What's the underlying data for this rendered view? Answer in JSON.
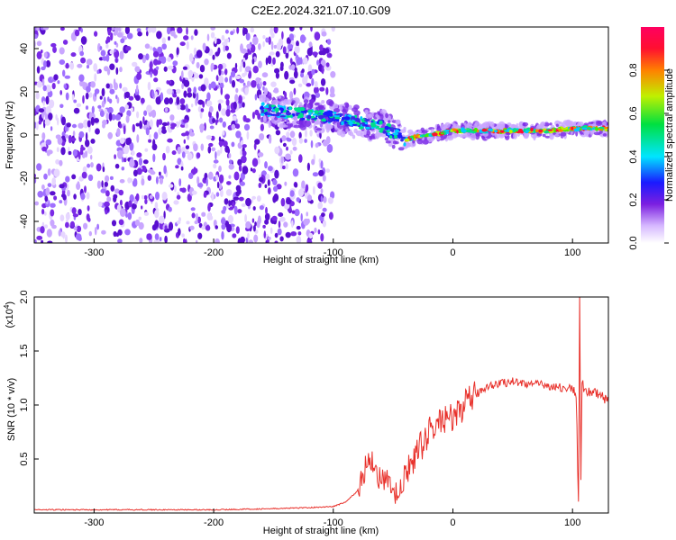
{
  "page_title": "C2E2.2024.321.07.10.G09",
  "colorbar": {
    "label": "Normalized spectral amplitude",
    "ticks": [
      "0.0",
      "0.2",
      "0.4",
      "0.6",
      "0.8"
    ],
    "range": [
      0,
      1
    ],
    "colors": [
      "#ffffff",
      "#d6b8ff",
      "#7b1fe0",
      "#1a1aff",
      "#00e5ff",
      "#00e040",
      "#c0f000",
      "#ff8000",
      "#ff1030",
      "#ff0060"
    ]
  },
  "chart_data": [
    {
      "type": "heatmap",
      "title": "C2E2.2024.321.07.10.G09",
      "xlabel": "Height of straight line (km)",
      "ylabel": "Frequency (Hz)",
      "xlim": [
        -350,
        130
      ],
      "ylim": [
        -50,
        50
      ],
      "xticks": [
        -300,
        -200,
        -100,
        0,
        100
      ],
      "yticks": [
        -40,
        -20,
        0,
        20,
        40
      ],
      "description_regions": [
        {
          "x": [
            -350,
            -100
          ],
          "y": [
            -50,
            50
          ],
          "level": "noise",
          "amplitude": 0.15
        },
        {
          "x": [
            -160,
            -40
          ],
          "y": [
            -5,
            15
          ],
          "level": "signal",
          "amplitude": 0.5
        },
        {
          "x": [
            -40,
            130
          ],
          "y": [
            0,
            4
          ],
          "level": "carrier",
          "amplitude": 1.0
        }
      ],
      "ridge": {
        "x": [
          -160,
          -130,
          -100,
          -80,
          -60,
          -40,
          -30,
          -20,
          -10,
          0,
          20,
          40,
          60,
          80,
          100,
          110,
          120,
          130
        ],
        "y": [
          12,
          10,
          8,
          6,
          4,
          -2,
          -1,
          0,
          1,
          2,
          2,
          2,
          2,
          2,
          3,
          3,
          3,
          3
        ]
      }
    },
    {
      "type": "line",
      "xlabel": "Height of straight line (km)",
      "ylabel": "SNR (10 * v/v)",
      "exponent_label": "(x10",
      "exponent_power": "4",
      "exponent_close": ")",
      "color": "#e8302a",
      "xlim": [
        -350,
        130
      ],
      "ylim": [
        0,
        2.0
      ],
      "xticks": [
        -300,
        -200,
        -100,
        0,
        100
      ],
      "yticks": [
        "0.5",
        "1.0",
        "1.5",
        "2.0"
      ],
      "series": [
        {
          "x": [
            -350,
            -300,
            -250,
            -200,
            -150,
            -120,
            -100,
            -90,
            -80,
            -75,
            -70,
            -65,
            -60,
            -55,
            -50,
            -45,
            -40,
            -35,
            -30,
            -25,
            -20,
            -15,
            -10,
            -5,
            0,
            5,
            10,
            15,
            20,
            25,
            30,
            40,
            50,
            60,
            70,
            80,
            90,
            100,
            103,
            105,
            106,
            107,
            108,
            110,
            115,
            120,
            125,
            130
          ],
          "y": [
            0.03,
            0.03,
            0.03,
            0.03,
            0.04,
            0.05,
            0.06,
            0.1,
            0.2,
            0.35,
            0.55,
            0.4,
            0.3,
            0.28,
            0.2,
            0.15,
            0.35,
            0.45,
            0.55,
            0.65,
            0.75,
            0.8,
            0.85,
            0.9,
            0.85,
            0.95,
            1.0,
            1.05,
            1.1,
            1.15,
            1.18,
            1.2,
            1.22,
            1.2,
            1.19,
            1.18,
            1.16,
            1.15,
            1.1,
            0.1,
            2.0,
            0.3,
            1.2,
            1.15,
            1.12,
            1.1,
            1.08,
            1.02
          ]
        }
      ]
    }
  ]
}
